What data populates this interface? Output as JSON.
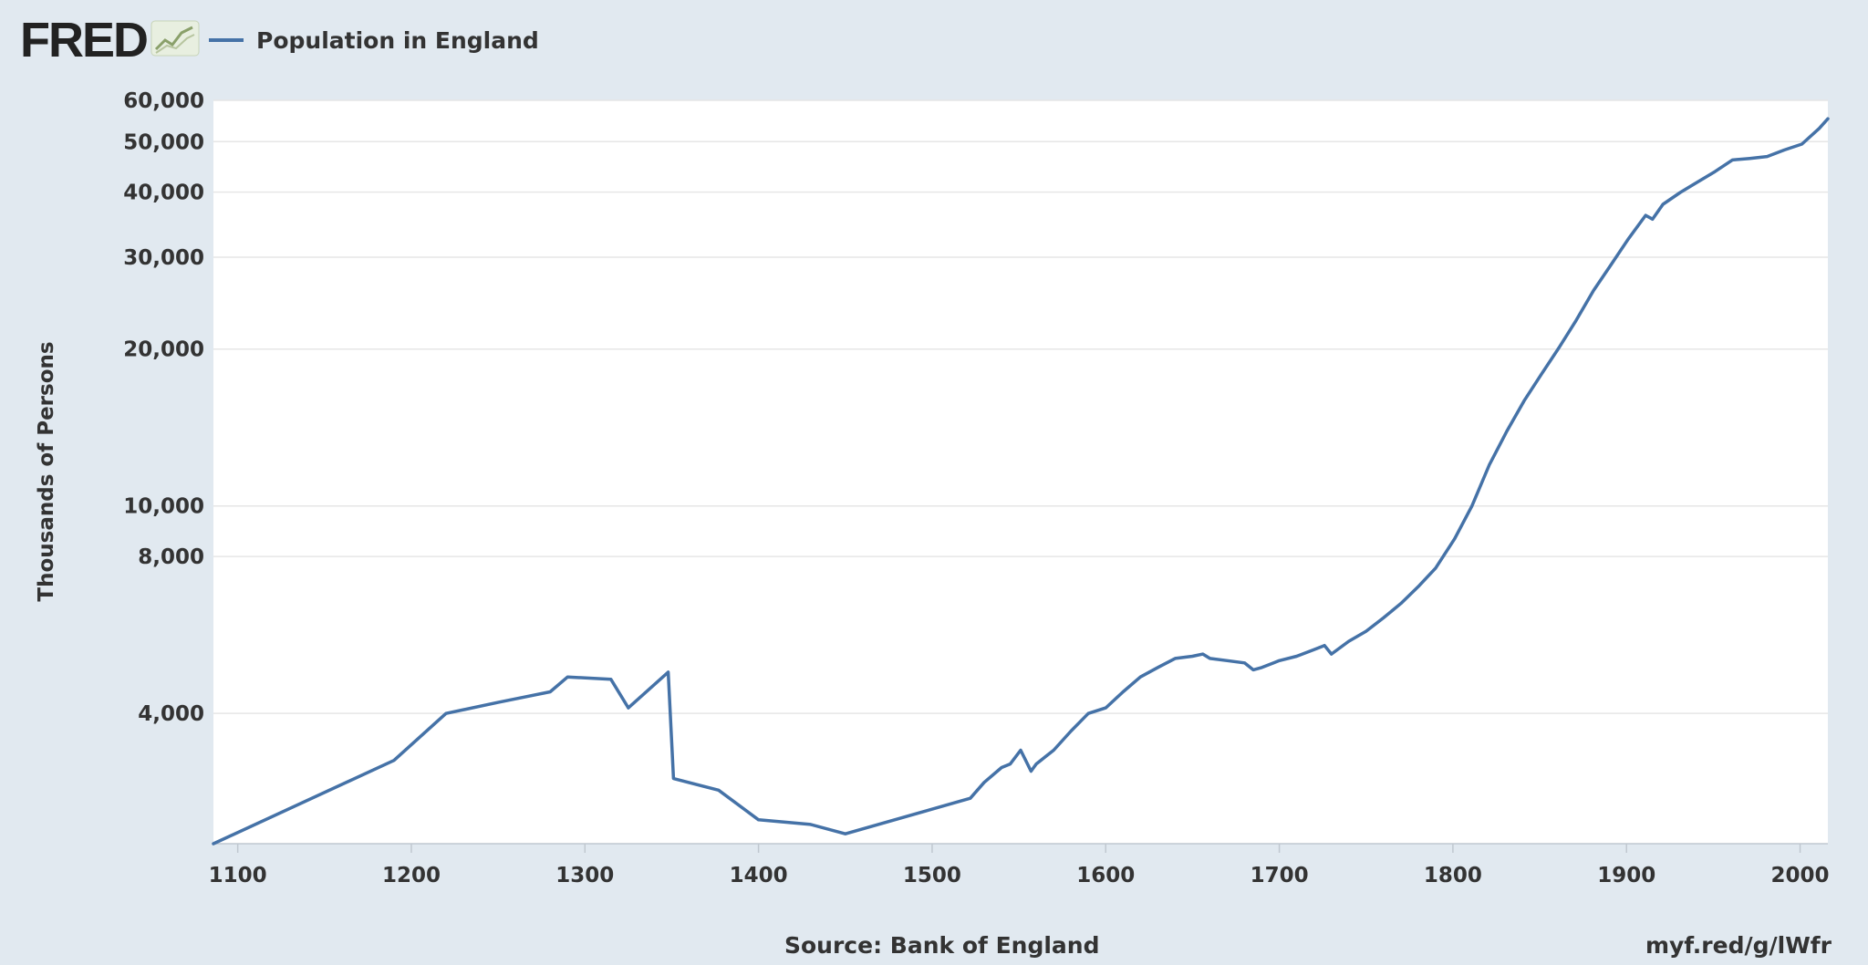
{
  "header": {
    "logo_text": "FRED",
    "logo_icon": "line-chart-icon",
    "legend_label": "Population in England"
  },
  "footer": {
    "source": "Source: Bank of England",
    "link": "myf.red/g/lWfr"
  },
  "colors": {
    "background": "#e1e9f0",
    "plot_background": "#ffffff",
    "series": "#4572a7",
    "grid": "#e6e6e6"
  },
  "chart_data": {
    "type": "line",
    "title": "",
    "xlabel": "",
    "ylabel": "Thousands of Persons",
    "y_scale": "log",
    "grid": true,
    "legend_position": "top-left",
    "xlim": [
      1086,
      2016
    ],
    "ylim": [
      2250,
      60000
    ],
    "x_ticks": [
      1100,
      1200,
      1300,
      1400,
      1500,
      1600,
      1700,
      1800,
      1900,
      2000
    ],
    "y_ticks": [
      4000,
      8000,
      10000,
      20000,
      30000,
      40000,
      50000,
      60000
    ],
    "y_tick_labels": [
      "4,000",
      "8,000",
      "10,000",
      "20,000",
      "30,000",
      "40,000",
      "50,000",
      "60,000"
    ],
    "series": [
      {
        "name": "Population in England",
        "x": [
          1086,
          1190,
          1220,
          1250,
          1280,
          1290,
          1315,
          1325,
          1348,
          1351,
          1377,
          1400,
          1430,
          1450,
          1522,
          1530,
          1540,
          1545,
          1551,
          1557,
          1560,
          1570,
          1580,
          1590,
          1600,
          1610,
          1620,
          1630,
          1640,
          1650,
          1656,
          1660,
          1670,
          1680,
          1685,
          1690,
          1700,
          1710,
          1720,
          1726,
          1730,
          1740,
          1750,
          1760,
          1770,
          1780,
          1790,
          1801,
          1811,
          1821,
          1831,
          1841,
          1851,
          1861,
          1871,
          1881,
          1891,
          1901,
          1911,
          1915,
          1921,
          1931,
          1939,
          1951,
          1961,
          1971,
          1981,
          1991,
          2001,
          2011,
          2016
        ],
        "values": [
          2250,
          3250,
          4000,
          4200,
          4400,
          4700,
          4650,
          4100,
          4800,
          3000,
          2850,
          2500,
          2450,
          2350,
          2750,
          2950,
          3150,
          3200,
          3400,
          3100,
          3200,
          3400,
          3700,
          4000,
          4100,
          4400,
          4700,
          4900,
          5100,
          5150,
          5200,
          5100,
          5050,
          5000,
          4850,
          4900,
          5050,
          5150,
          5300,
          5400,
          5200,
          5500,
          5750,
          6100,
          6500,
          7000,
          7600,
          8650,
          10000,
          12000,
          13900,
          15900,
          17900,
          20100,
          22700,
          25900,
          29000,
          32500,
          36100,
          35500,
          37900,
          39950,
          41460,
          43800,
          46100,
          46410,
          46820,
          48200,
          49450,
          53000,
          55300
        ]
      }
    ]
  }
}
